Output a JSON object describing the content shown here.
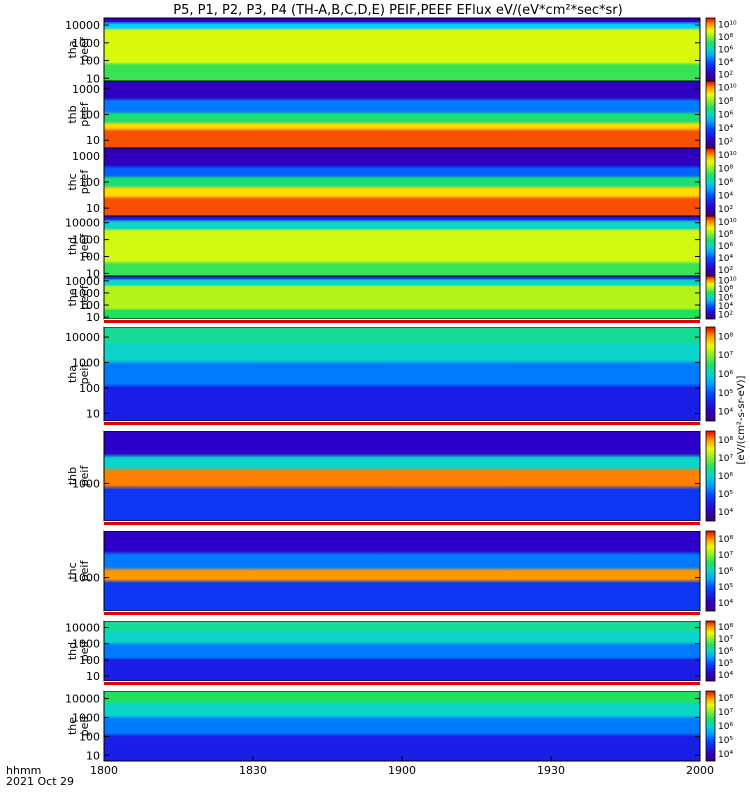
{
  "figure": {
    "title": "P5, P1, P2, P3, P4 (TH-A,B,C,D,E) PEIF,PEEF EFlux eV/(eV*cm²*sec*sr)",
    "footer_line1": "hhmm",
    "footer_line2": "2021 Oct 29"
  },
  "colorbar_label": "[eV/(cm²-s-sr-eV)]",
  "chart_data": {
    "type": "heatmap",
    "title": "P5, P1, P2, P3, P4 (TH-A,B,C,D,E) PEIF,PEEF EFlux eV/(eV*cm²*sec*sr)",
    "xlabel": "hhmm",
    "date": "2021 Oct 29",
    "x_ticks": [
      "1800",
      "1830",
      "1900",
      "1930",
      "2000"
    ],
    "xlim": [
      "18:00",
      "20:00"
    ],
    "colormap": "rainbow (purple-blue-cyan-green-yellow-red)",
    "panels": [
      {
        "id": "tha-peef",
        "ylabel_1": "tha",
        "ylabel_2": "peef",
        "yscale": "log",
        "y_ticks": [
          "10",
          "100",
          "1000",
          "10000"
        ],
        "ylim": [
          7,
          25000
        ],
        "c_ticks": [
          "10²",
          "10⁴",
          "10⁶",
          "10⁸",
          "10¹⁰"
        ],
        "crange": [
          1,
          10
        ]
      },
      {
        "id": "thb-peef",
        "ylabel_1": "thb",
        "ylabel_2": "peef",
        "yscale": "log",
        "y_ticks": [
          "10",
          "100",
          "1000"
        ],
        "ylim": [
          5,
          2000
        ],
        "c_ticks": [
          "10²",
          "10⁴",
          "10⁶",
          "10⁸",
          "10¹⁰"
        ],
        "crange": [
          1,
          10
        ]
      },
      {
        "id": "thc-peef",
        "ylabel_1": "thc",
        "ylabel_2": "peef",
        "yscale": "log",
        "y_ticks": [
          "10",
          "100",
          "1000"
        ],
        "ylim": [
          5,
          2000
        ],
        "c_ticks": [
          "10²",
          "10⁴",
          "10⁶",
          "10⁸",
          "10¹⁰"
        ],
        "crange": [
          1,
          10
        ]
      },
      {
        "id": "thd-peef",
        "ylabel_1": "thd",
        "ylabel_2": "peef",
        "yscale": "log",
        "y_ticks": [
          "10",
          "100",
          "1000",
          "10000"
        ],
        "ylim": [
          7,
          25000
        ],
        "c_ticks": [
          "10²",
          "10⁴",
          "10⁶",
          "10⁸",
          "10¹⁰"
        ],
        "crange": [
          1,
          10
        ]
      },
      {
        "id": "the-peef",
        "ylabel_1": "the",
        "ylabel_2": "peef",
        "yscale": "log",
        "y_ticks": [
          "10",
          "100",
          "1000",
          "10000"
        ],
        "ylim": [
          7,
          25000
        ],
        "c_ticks": [
          "10²",
          "10⁴",
          "10⁶",
          "10⁸",
          "10¹⁰"
        ],
        "crange": [
          1,
          10
        ]
      },
      {
        "id": "tha-peif",
        "ylabel_1": "tha",
        "ylabel_2": "peif",
        "yscale": "log",
        "y_ticks": [
          "10",
          "100",
          "1000",
          "10000"
        ],
        "ylim": [
          5,
          25000
        ],
        "c_ticks": [
          "10⁴",
          "10⁵",
          "10⁶",
          "10⁷",
          "10⁸"
        ],
        "crange": [
          4,
          8
        ]
      },
      {
        "id": "thb-peif",
        "ylabel_1": "thb",
        "ylabel_2": "peif",
        "yscale": "log",
        "y_ticks": [
          "1000"
        ],
        "ylim": [
          100,
          25000
        ],
        "c_ticks": [
          "10⁴",
          "10⁵",
          "10⁶",
          "10⁷",
          "10⁸"
        ],
        "crange": [
          4,
          8
        ]
      },
      {
        "id": "thc-peif",
        "ylabel_1": "thc",
        "ylabel_2": "peif",
        "yscale": "log",
        "y_ticks": [
          "1000"
        ],
        "ylim": [
          100,
          25000
        ],
        "c_ticks": [
          "10⁴",
          "10⁵",
          "10⁶",
          "10⁷",
          "10⁸"
        ],
        "crange": [
          4,
          8
        ]
      },
      {
        "id": "thd-peif",
        "ylabel_1": "thd",
        "ylabel_2": "peif",
        "yscale": "log",
        "y_ticks": [
          "10",
          "100",
          "1000",
          "10000"
        ],
        "ylim": [
          5,
          25000
        ],
        "c_ticks": [
          "10⁴",
          "10⁵",
          "10⁶",
          "10⁷",
          "10⁸"
        ],
        "crange": [
          4,
          8
        ]
      },
      {
        "id": "the-peif",
        "ylabel_1": "the",
        "ylabel_2": "peif",
        "yscale": "log",
        "y_ticks": [
          "10",
          "100",
          "1000",
          "10000"
        ],
        "ylim": [
          5,
          25000
        ],
        "c_ticks": [
          "10⁴",
          "10⁵",
          "10⁶",
          "10⁷",
          "10⁸"
        ],
        "crange": [
          4,
          8
        ]
      }
    ]
  }
}
